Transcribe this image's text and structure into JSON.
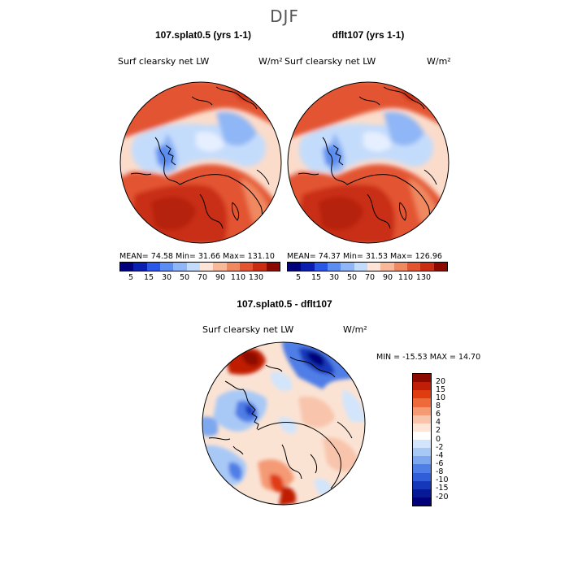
{
  "page": {
    "title": "DJF"
  },
  "panels": [
    {
      "title": "107.splat0.5 (yrs 1-1)",
      "variable": "Surf clearsky net LW",
      "units": "W/m²",
      "stats": "MEAN=  74.58   Min=   31.66   Max=  131.10",
      "colorbar_labels": [
        "5",
        "15",
        "30",
        "50",
        "70",
        "90",
        "110",
        "130"
      ]
    },
    {
      "title": "dflt107 (yrs 1-1)",
      "variable": "Surf clearsky net LW",
      "units": "W/m²",
      "stats": "MEAN=  74.37   Min=   31.53   Max=  126.96",
      "colorbar_labels": [
        "5",
        "15",
        "30",
        "50",
        "70",
        "90",
        "110",
        "130"
      ]
    }
  ],
  "diff": {
    "title": "107.splat0.5 - dflt107",
    "variable": "Surf clearsky net LW",
    "units": "W/m²",
    "stats": "MIN = -15.53 MAX =  14.70",
    "colorbar_labels": [
      "20",
      "15",
      "10",
      "8",
      "6",
      "4",
      "2",
      "0",
      "-2",
      "-4",
      "-6",
      "-8",
      "-10",
      "-15",
      "-20"
    ]
  },
  "colors": {
    "seq": [
      "#00007a",
      "#0a1fb0",
      "#2a58e6",
      "#5b8ef0",
      "#8fb6f6",
      "#c4dcfb",
      "#fde4d6",
      "#f9b999",
      "#f08860",
      "#e35530",
      "#c92d12",
      "#8b0a00"
    ],
    "div": [
      "#8b0a00",
      "#c01e06",
      "#e03c12",
      "#ee6a3a",
      "#f49a74",
      "#f8c5ac",
      "#fde6d8",
      "#ffffff",
      "#d2e5fb",
      "#a8c9f6",
      "#7da7ef",
      "#4f7ee6",
      "#2f5ed8",
      "#1537b9",
      "#061a98",
      "#00007a"
    ]
  }
}
